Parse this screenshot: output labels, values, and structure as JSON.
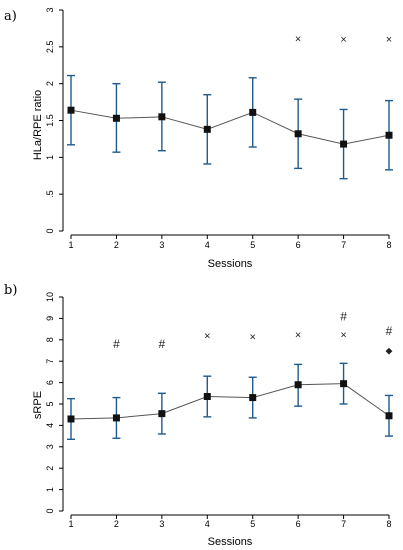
{
  "chart_data": [
    {
      "panel_label": "a)",
      "type": "line",
      "xlabel": "Sessions",
      "ylabel": "HLa/RPE ratio",
      "x": [
        1,
        2,
        3,
        4,
        5,
        6,
        7,
        8
      ],
      "x_tick_labels": [
        "1",
        "2",
        "3",
        "4",
        "5",
        "6",
        "7",
        "8"
      ],
      "y_tick_values": [
        0,
        0.5,
        1,
        1.5,
        2,
        2.5,
        3
      ],
      "y_tick_labels": [
        "0",
        ".5",
        "1",
        "1.5",
        "2",
        "2.5",
        "3"
      ],
      "ylim": [
        0,
        3
      ],
      "series": [
        {
          "values": [
            1.64,
            1.53,
            1.55,
            1.38,
            1.61,
            1.32,
            1.18,
            1.3
          ],
          "sd_lower": [
            1.17,
            1.07,
            1.09,
            0.91,
            1.14,
            0.85,
            0.71,
            0.83
          ],
          "sd_upper": [
            2.11,
            2.0,
            2.02,
            1.85,
            2.08,
            1.79,
            1.65,
            1.77
          ]
        }
      ],
      "annotations": [
        {
          "x": 6,
          "y": 2.6,
          "symbol": "×"
        },
        {
          "x": 7,
          "y": 2.59,
          "symbol": "×"
        },
        {
          "x": 8,
          "y": 2.59,
          "symbol": "×"
        }
      ],
      "colors": {
        "line": "#555555",
        "marker": "#111111",
        "error_bar": "#1f5a8c",
        "axis": "#000000",
        "annotation": "#333333"
      }
    },
    {
      "panel_label": "b)",
      "type": "line",
      "xlabel": "Sessions",
      "ylabel": "sRPE",
      "x": [
        1,
        2,
        3,
        4,
        5,
        6,
        7,
        8
      ],
      "x_tick_labels": [
        "1",
        "2",
        "3",
        "4",
        "5",
        "6",
        "7",
        "8"
      ],
      "y_tick_values": [
        0,
        1,
        2,
        3,
        4,
        5,
        6,
        7,
        8,
        9,
        10
      ],
      "y_tick_labels": [
        "0",
        "1",
        "2",
        "3",
        "4",
        "5",
        "6",
        "7",
        "8",
        "9",
        "10"
      ],
      "ylim": [
        0,
        10
      ],
      "series": [
        {
          "values": [
            4.3,
            4.35,
            4.55,
            5.35,
            5.3,
            5.9,
            5.95,
            4.45
          ],
          "sd_lower": [
            3.35,
            3.4,
            3.6,
            4.4,
            4.35,
            4.9,
            5.0,
            3.5
          ],
          "sd_upper": [
            5.25,
            5.3,
            5.5,
            6.3,
            6.25,
            6.85,
            6.9,
            5.4
          ]
        }
      ],
      "annotations": [
        {
          "x": 2,
          "y": 7.8,
          "symbol": "#"
        },
        {
          "x": 3,
          "y": 7.8,
          "symbol": "#"
        },
        {
          "x": 4,
          "y": 8.15,
          "symbol": "×"
        },
        {
          "x": 5,
          "y": 8.1,
          "symbol": "×"
        },
        {
          "x": 6,
          "y": 8.2,
          "symbol": "×"
        },
        {
          "x": 7,
          "y": 8.2,
          "symbol": "×"
        },
        {
          "x": 7,
          "y": 9.1,
          "symbol": "#"
        },
        {
          "x": 8,
          "y": 8.4,
          "symbol": "#"
        },
        {
          "x": 8,
          "y": 7.5,
          "symbol": "◆"
        }
      ],
      "colors": {
        "line": "#555555",
        "marker": "#111111",
        "error_bar": "#1f5a8c",
        "axis": "#000000",
        "annotation": "#333333"
      }
    }
  ]
}
